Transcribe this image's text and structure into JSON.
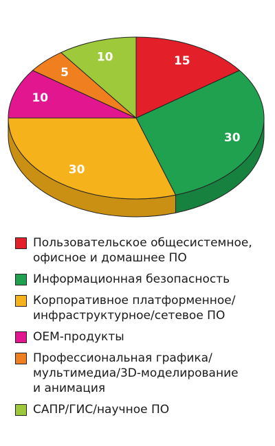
{
  "chart_data": {
    "type": "pie",
    "title": "",
    "series": [
      {
        "name": "Пользовательское общесистемное,\nофисное и домашнее ПО",
        "value": 15,
        "label": "15",
        "color": "#e3202a",
        "side_color": "#b11a22"
      },
      {
        "name": "Информационная безопасность",
        "value": 30,
        "label": "30",
        "color": "#1fa14f",
        "side_color": "#17823f"
      },
      {
        "name": "Корпоративное платформенное/\nинфраструктурное/сетевое ПО",
        "value": 30,
        "label": "30",
        "color": "#f6b21b",
        "side_color": "#c99014"
      },
      {
        "name": "OEM-продукты",
        "value": 10,
        "label": "10",
        "color": "#e2168f",
        "side_color": "#b01170"
      },
      {
        "name": "Профессиональная графика/\nмультимедиа/3D-моделирование\nи анимация",
        "value": 5,
        "label": "5",
        "color": "#f07f1f",
        "side_color": "#c66718"
      },
      {
        "name": "САПР/ГИС/научное ПО",
        "value": 10,
        "label": "10",
        "color": "#9ec93b",
        "side_color": "#7fa52e"
      }
    ],
    "legend_position": "bottom"
  }
}
